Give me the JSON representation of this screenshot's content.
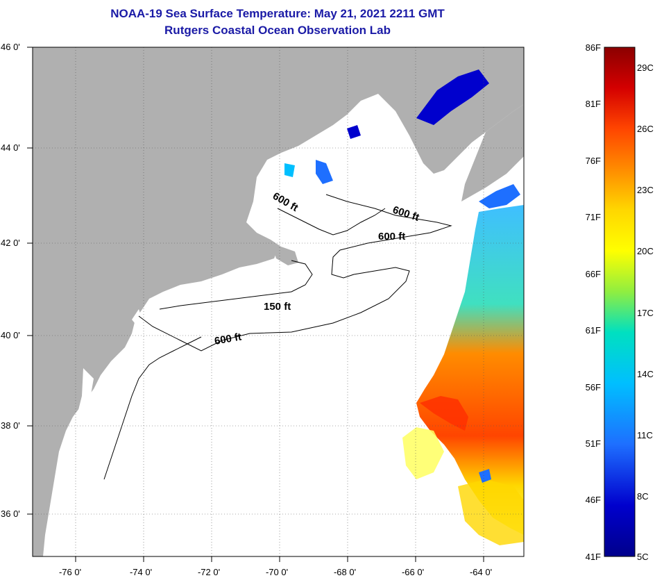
{
  "header": {
    "title": "NOAA-19 Sea Surface Temperature:  May 21, 2021 2211 GMT",
    "subtitle": "Rutgers Coastal Ocean Observation Lab"
  },
  "map": {
    "lon_labels": [
      "-76 0'",
      "-74 0'",
      "-72 0'",
      "-70 0'",
      "-68 0'",
      "-66 0'",
      "-64 0'"
    ],
    "lat_labels": [
      "46 0'",
      "44 0'",
      "42 0'",
      "40 0'",
      "38 0'",
      "36 0'"
    ],
    "contour_labels": [
      "600 ft",
      "600 ft",
      "600 ft",
      "150 ft",
      "600 ft"
    ],
    "land_color": "#b0b0b0",
    "ocean_color": "#ffffff"
  },
  "colorbar": {
    "f_labels": [
      "86F",
      "81F",
      "76F",
      "71F",
      "66F",
      "61F",
      "56F",
      "51F",
      "46F",
      "41F"
    ],
    "c_labels": [
      "29C",
      "26C",
      "23C",
      "20C",
      "17C",
      "14C",
      "11C",
      "8C",
      "5C"
    ],
    "colors": [
      "#8b0000",
      "#d40000",
      "#ff4500",
      "#ff8c00",
      "#ffd700",
      "#ffff00",
      "#90ee40",
      "#00e0c0",
      "#00bfff",
      "#1e6fff",
      "#0000cd",
      "#00008b"
    ]
  }
}
